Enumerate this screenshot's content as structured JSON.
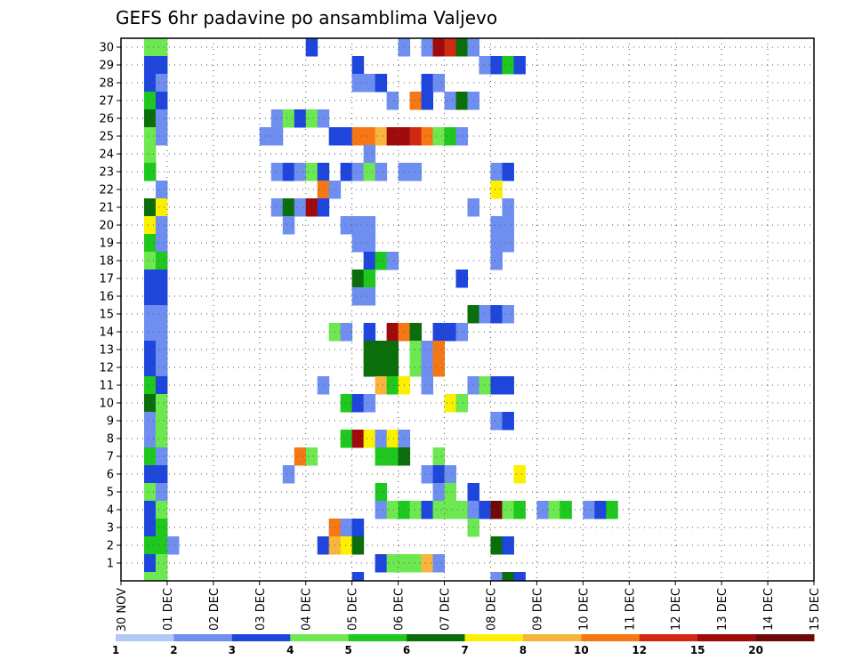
{
  "chart_data": {
    "type": "heatmap",
    "title": "GEFS 6hr padavine po ansamblima Valjevo",
    "x_tick_labels": [
      "30 NOV",
      "01 DEC",
      "02 DEC",
      "03 DEC",
      "04 DEC",
      "05 DEC",
      "06 DEC",
      "07 DEC",
      "08 DEC",
      "09 DEC",
      "10 DEC",
      "11 DEC",
      "12 DEC",
      "13 DEC",
      "14 DEC",
      "15 DEC"
    ],
    "y_tick_labels": [
      "1",
      "2",
      "3",
      "4",
      "5",
      "6",
      "7",
      "8",
      "9",
      "10",
      "11",
      "12",
      "13",
      "14",
      "15",
      "16",
      "17",
      "18",
      "19",
      "20",
      "21",
      "22",
      "23",
      "24",
      "25",
      "26",
      "27",
      "28",
      "29",
      "30"
    ],
    "x_step_hours": 6,
    "member_range": [
      0,
      30
    ],
    "grid": true,
    "colorbar": {
      "labels": [
        "1",
        "2",
        "3",
        "4",
        "5",
        "6",
        "7",
        "8",
        "10",
        "12",
        "15",
        "20"
      ],
      "colors": [
        "#b4c8f8",
        "#6e8ef0",
        "#1e46dc",
        "#6ee850",
        "#1ec81e",
        "#0a6e0a",
        "#faf000",
        "#f8b43c",
        "#f57814",
        "#d22814",
        "#a00a0a",
        "#6e0a0a"
      ]
    },
    "cells": [
      [
        30,
        0,
        3
      ],
      [
        30,
        1,
        3
      ],
      [
        30,
        14,
        2
      ],
      [
        30,
        22,
        1
      ],
      [
        30,
        24,
        1
      ],
      [
        30,
        25,
        10
      ],
      [
        30,
        26,
        9
      ],
      [
        30,
        27,
        5
      ],
      [
        30,
        28,
        1
      ],
      [
        29,
        0,
        2
      ],
      [
        29,
        1,
        2
      ],
      [
        29,
        18,
        2
      ],
      [
        29,
        29,
        1
      ],
      [
        29,
        30,
        2
      ],
      [
        29,
        31,
        4
      ],
      [
        29,
        32,
        2
      ],
      [
        28,
        0,
        2
      ],
      [
        28,
        1,
        1
      ],
      [
        28,
        18,
        1
      ],
      [
        28,
        19,
        1
      ],
      [
        28,
        20,
        2
      ],
      [
        28,
        24,
        2
      ],
      [
        28,
        25,
        1
      ],
      [
        27,
        0,
        4
      ],
      [
        27,
        1,
        2
      ],
      [
        27,
        21,
        1
      ],
      [
        27,
        23,
        8
      ],
      [
        27,
        24,
        2
      ],
      [
        27,
        26,
        1
      ],
      [
        27,
        27,
        5
      ],
      [
        27,
        28,
        1
      ],
      [
        26,
        0,
        5
      ],
      [
        26,
        1,
        1
      ],
      [
        26,
        11,
        1
      ],
      [
        26,
        12,
        3
      ],
      [
        26,
        13,
        2
      ],
      [
        26,
        14,
        3
      ],
      [
        26,
        15,
        1
      ],
      [
        25,
        0,
        3
      ],
      [
        25,
        1,
        1
      ],
      [
        25,
        10,
        1
      ],
      [
        25,
        11,
        1
      ],
      [
        25,
        16,
        2
      ],
      [
        25,
        17,
        2
      ],
      [
        25,
        18,
        8
      ],
      [
        25,
        19,
        8
      ],
      [
        25,
        20,
        7
      ],
      [
        25,
        21,
        10
      ],
      [
        25,
        22,
        10
      ],
      [
        25,
        23,
        9
      ],
      [
        25,
        24,
        8
      ],
      [
        25,
        25,
        3
      ],
      [
        25,
        26,
        4
      ],
      [
        25,
        27,
        1
      ],
      [
        24,
        0,
        3
      ],
      [
        24,
        19,
        1
      ],
      [
        23,
        0,
        4
      ],
      [
        23,
        11,
        1
      ],
      [
        23,
        12,
        2
      ],
      [
        23,
        13,
        1
      ],
      [
        23,
        14,
        3
      ],
      [
        23,
        15,
        2
      ],
      [
        23,
        17,
        2
      ],
      [
        23,
        18,
        1
      ],
      [
        23,
        19,
        3
      ],
      [
        23,
        20,
        1
      ],
      [
        23,
        22,
        1
      ],
      [
        23,
        23,
        1
      ],
      [
        23,
        30,
        1
      ],
      [
        23,
        31,
        2
      ],
      [
        22,
        1,
        1
      ],
      [
        22,
        15,
        8
      ],
      [
        22,
        16,
        1
      ],
      [
        22,
        30,
        6
      ],
      [
        21,
        0,
        5
      ],
      [
        21,
        1,
        6
      ],
      [
        21,
        11,
        1
      ],
      [
        21,
        12,
        5
      ],
      [
        21,
        13,
        1
      ],
      [
        21,
        14,
        10
      ],
      [
        21,
        15,
        2
      ],
      [
        21,
        28,
        1
      ],
      [
        21,
        31,
        1
      ],
      [
        20,
        0,
        6
      ],
      [
        20,
        1,
        1
      ],
      [
        20,
        12,
        1
      ],
      [
        20,
        17,
        1
      ],
      [
        20,
        18,
        1
      ],
      [
        20,
        19,
        1
      ],
      [
        20,
        30,
        1
      ],
      [
        20,
        31,
        1
      ],
      [
        19,
        0,
        4
      ],
      [
        19,
        1,
        1
      ],
      [
        19,
        18,
        1
      ],
      [
        19,
        19,
        1
      ],
      [
        19,
        30,
        1
      ],
      [
        19,
        31,
        1
      ],
      [
        18,
        0,
        3
      ],
      [
        18,
        1,
        4
      ],
      [
        18,
        19,
        2
      ],
      [
        18,
        20,
        4
      ],
      [
        18,
        21,
        1
      ],
      [
        18,
        30,
        1
      ],
      [
        17,
        0,
        2
      ],
      [
        17,
        1,
        2
      ],
      [
        17,
        18,
        5
      ],
      [
        17,
        19,
        4
      ],
      [
        17,
        27,
        2
      ],
      [
        16,
        0,
        2
      ],
      [
        16,
        1,
        2
      ],
      [
        16,
        18,
        1
      ],
      [
        16,
        19,
        1
      ],
      [
        15,
        0,
        1
      ],
      [
        15,
        1,
        1
      ],
      [
        15,
        28,
        5
      ],
      [
        15,
        29,
        1
      ],
      [
        15,
        30,
        2
      ],
      [
        15,
        31,
        1
      ],
      [
        14,
        0,
        1
      ],
      [
        14,
        1,
        1
      ],
      [
        14,
        16,
        3
      ],
      [
        14,
        17,
        1
      ],
      [
        14,
        19,
        2
      ],
      [
        14,
        21,
        10
      ],
      [
        14,
        22,
        8
      ],
      [
        14,
        23,
        5
      ],
      [
        14,
        25,
        2
      ],
      [
        14,
        26,
        2
      ],
      [
        14,
        27,
        1
      ],
      [
        13,
        0,
        2
      ],
      [
        13,
        1,
        1
      ],
      [
        13,
        19,
        5
      ],
      [
        13,
        20,
        5
      ],
      [
        13,
        21,
        5
      ],
      [
        13,
        23,
        3
      ],
      [
        13,
        24,
        1
      ],
      [
        13,
        25,
        8
      ],
      [
        12,
        0,
        2
      ],
      [
        12,
        1,
        1
      ],
      [
        12,
        19,
        5
      ],
      [
        12,
        20,
        5
      ],
      [
        12,
        21,
        5
      ],
      [
        12,
        23,
        3
      ],
      [
        12,
        24,
        1
      ],
      [
        12,
        25,
        8
      ],
      [
        11,
        0,
        4
      ],
      [
        11,
        1,
        2
      ],
      [
        11,
        15,
        1
      ],
      [
        11,
        20,
        7
      ],
      [
        11,
        21,
        4
      ],
      [
        11,
        22,
        6
      ],
      [
        11,
        24,
        1
      ],
      [
        11,
        28,
        1
      ],
      [
        11,
        29,
        3
      ],
      [
        11,
        30,
        2
      ],
      [
        11,
        31,
        2
      ],
      [
        10,
        0,
        5
      ],
      [
        10,
        1,
        3
      ],
      [
        10,
        17,
        4
      ],
      [
        10,
        18,
        2
      ],
      [
        10,
        19,
        1
      ],
      [
        10,
        26,
        6
      ],
      [
        10,
        27,
        3
      ],
      [
        9,
        0,
        1
      ],
      [
        9,
        1,
        3
      ],
      [
        9,
        30,
        1
      ],
      [
        9,
        31,
        2
      ],
      [
        8,
        0,
        1
      ],
      [
        8,
        1,
        3
      ],
      [
        8,
        17,
        4
      ],
      [
        8,
        18,
        10
      ],
      [
        8,
        19,
        6
      ],
      [
        8,
        20,
        1
      ],
      [
        8,
        21,
        6
      ],
      [
        8,
        22,
        1
      ],
      [
        7,
        0,
        4
      ],
      [
        7,
        1,
        1
      ],
      [
        7,
        13,
        8
      ],
      [
        7,
        14,
        3
      ],
      [
        7,
        20,
        4
      ],
      [
        7,
        21,
        4
      ],
      [
        7,
        22,
        5
      ],
      [
        7,
        25,
        3
      ],
      [
        6,
        0,
        2
      ],
      [
        6,
        1,
        2
      ],
      [
        6,
        12,
        1
      ],
      [
        6,
        24,
        1
      ],
      [
        6,
        25,
        2
      ],
      [
        6,
        26,
        1
      ],
      [
        6,
        32,
        6
      ],
      [
        5,
        0,
        3
      ],
      [
        5,
        1,
        1
      ],
      [
        5,
        20,
        4
      ],
      [
        5,
        25,
        1
      ],
      [
        5,
        26,
        3
      ],
      [
        5,
        28,
        2
      ],
      [
        4,
        0,
        2
      ],
      [
        4,
        1,
        3
      ],
      [
        4,
        20,
        1
      ],
      [
        4,
        21,
        3
      ],
      [
        4,
        22,
        4
      ],
      [
        4,
        23,
        3
      ],
      [
        4,
        24,
        2
      ],
      [
        4,
        25,
        3
      ],
      [
        4,
        26,
        3
      ],
      [
        4,
        27,
        3
      ],
      [
        4,
        28,
        1
      ],
      [
        4,
        29,
        2
      ],
      [
        4,
        30,
        11
      ],
      [
        4,
        31,
        3
      ],
      [
        4,
        32,
        4
      ],
      [
        4,
        34,
        1
      ],
      [
        4,
        35,
        3
      ],
      [
        4,
        36,
        4
      ],
      [
        4,
        38,
        1
      ],
      [
        4,
        39,
        2
      ],
      [
        4,
        40,
        4
      ],
      [
        3,
        0,
        2
      ],
      [
        3,
        1,
        4
      ],
      [
        3,
        16,
        8
      ],
      [
        3,
        17,
        1
      ],
      [
        3,
        18,
        2
      ],
      [
        3,
        28,
        3
      ],
      [
        2,
        0,
        4
      ],
      [
        2,
        1,
        4
      ],
      [
        2,
        2,
        1
      ],
      [
        2,
        15,
        2
      ],
      [
        2,
        16,
        7
      ],
      [
        2,
        17,
        6
      ],
      [
        2,
        18,
        5
      ],
      [
        2,
        30,
        5
      ],
      [
        2,
        31,
        2
      ],
      [
        1,
        0,
        2
      ],
      [
        1,
        1,
        3
      ],
      [
        1,
        20,
        2
      ],
      [
        1,
        21,
        3
      ],
      [
        1,
        22,
        3
      ],
      [
        1,
        23,
        3
      ],
      [
        1,
        24,
        7
      ],
      [
        1,
        25,
        1
      ],
      [
        0,
        0,
        3
      ],
      [
        0,
        1,
        3
      ],
      [
        0,
        18,
        2
      ],
      [
        0,
        30,
        1
      ],
      [
        0,
        31,
        5
      ],
      [
        0,
        32,
        2
      ]
    ]
  }
}
